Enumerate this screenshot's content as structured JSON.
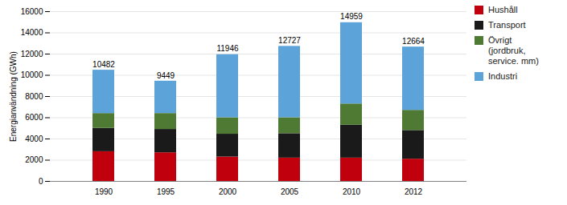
{
  "chart_data": {
    "type": "bar",
    "stacked": true,
    "categories": [
      "1990",
      "1995",
      "2000",
      "2005",
      "2010",
      "2012"
    ],
    "series": [
      {
        "name": "Hushåll",
        "color": "#C0000C",
        "values": [
          2800,
          2700,
          2300,
          2200,
          2200,
          2100
        ]
      },
      {
        "name": "Transport",
        "color": "#1A1A1A",
        "values": [
          2200,
          2200,
          2150,
          2300,
          3100,
          2700
        ]
      },
      {
        "name": "Övrigt\n(jordbruk,\nservice. mm)",
        "color": "#4E7A34",
        "values": [
          1400,
          1500,
          1550,
          1500,
          2000,
          1900
        ]
      },
      {
        "name": "Industri",
        "color": "#5BA3D9",
        "values": [
          4082,
          3049,
          5946,
          6727,
          7659,
          5964
        ]
      }
    ],
    "totals": [
      10482,
      9449,
      11946,
      12727,
      14959,
      12664
    ],
    "ylabel": "Energianvändning (GWh)",
    "ylim": [
      0,
      16000
    ],
    "yticks": [
      0,
      2000,
      4000,
      6000,
      8000,
      10000,
      12000,
      14000,
      16000
    ],
    "grid": true,
    "legend": "upper right"
  }
}
